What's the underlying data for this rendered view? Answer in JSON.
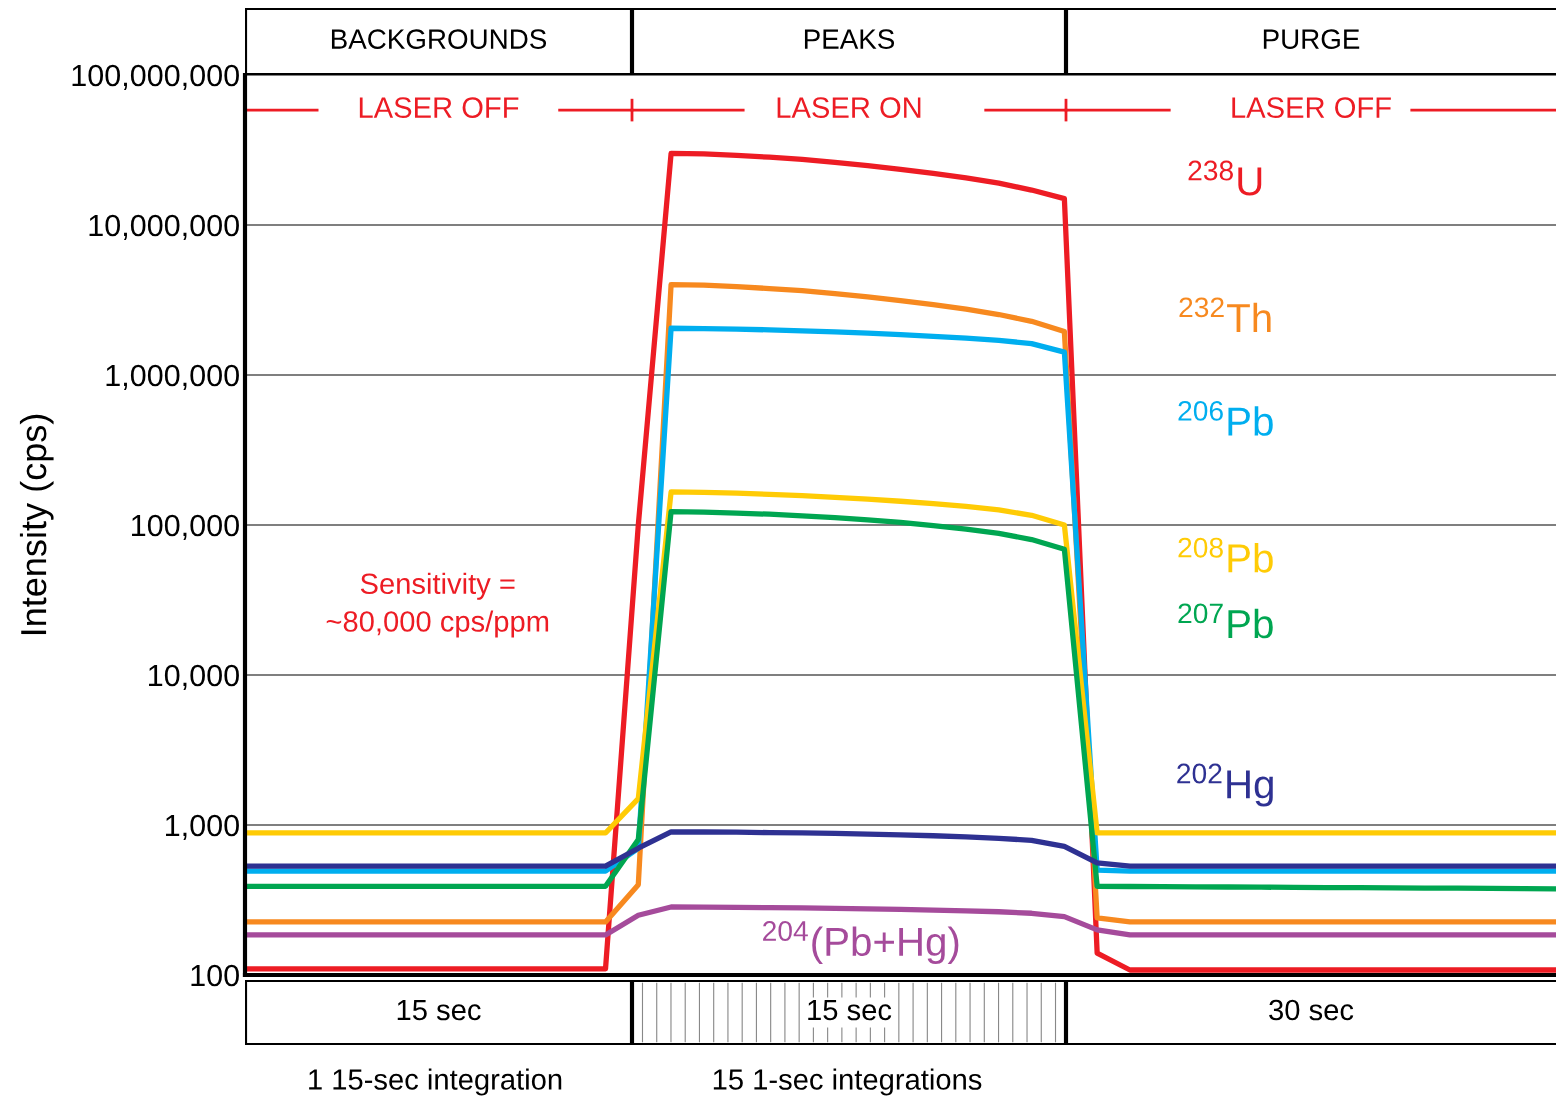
{
  "chart_data": {
    "type": "line",
    "ylabel": "Intensity (cps)",
    "log": "y",
    "grid": "y",
    "legend": false,
    "marker": "none",
    "line_style": "solid",
    "tick_labels": "y",
    "ylim": [
      100,
      100000000
    ],
    "yticks": [
      100,
      {
        "value": 1000,
        "label": "1,000"
      },
      {
        "value": 10000,
        "label": "10,000"
      },
      {
        "value": 100000,
        "label": "100,000"
      },
      {
        "value": 1000000,
        "label": "1,000,000"
      },
      {
        "value": 10000000,
        "label": "10,000,000"
      },
      {
        "value": 100000000,
        "label": "100,000,000"
      }
    ],
    "categories": [
      null,
      null,
      null,
      null,
      null,
      null,
      null,
      null,
      null,
      null,
      null,
      null,
      null,
      null,
      null,
      null,
      null,
      null,
      null,
      null,
      null,
      null,
      null,
      null,
      null,
      null,
      null,
      null,
      null,
      null,
      null,
      null,
      null,
      null,
      null,
      null,
      null,
      null,
      null,
      null,
      null
    ],
    "series": [
      {
        "name": "$^{238}$U",
        "color": "#ed1c24",
        "values": [
          110,
          110,
          110,
          110,
          110,
          110,
          110,
          110,
          110,
          110,
          110,
          110,
          100000,
          30000000,
          29800000,
          29100000,
          28300000,
          27400000,
          26200000,
          24900000,
          23500000,
          22100000,
          20600000,
          19000000,
          17100000,
          15000000,
          140,
          108,
          108,
          108,
          108,
          108,
          108,
          108,
          108,
          108,
          108,
          108,
          108,
          108,
          108
        ]
      },
      {
        "name": "$^{232}$Th",
        "color": "#f7891f",
        "values": [
          226,
          226,
          226,
          226,
          226,
          226,
          226,
          226,
          226,
          226,
          226,
          226,
          400,
          4000000,
          3970000,
          3880000,
          3770000,
          3650000,
          3490000,
          3320000,
          3130000,
          2950000,
          2750000,
          2530000,
          2280000,
          1950000,
          240,
          226,
          226,
          226,
          226,
          226,
          226,
          226,
          226,
          226,
          226,
          226,
          226,
          226,
          226
        ]
      },
      {
        "name": "$^{206}$Pb",
        "color": "#00aeef",
        "values": [
          493,
          493,
          493,
          493,
          493,
          493,
          493,
          493,
          493,
          493,
          493,
          493,
          700,
          2050000,
          2040000,
          2020000,
          2000000,
          1970000,
          1940000,
          1900000,
          1860000,
          1810000,
          1760000,
          1700000,
          1620000,
          1420000,
          500,
          493,
          493,
          493,
          493,
          493,
          493,
          493,
          493,
          493,
          493,
          493,
          493,
          493,
          493
        ]
      },
      {
        "name": "$^{208}$Pb",
        "color": "#ffcb05",
        "values": [
          885,
          885,
          885,
          885,
          885,
          885,
          885,
          885,
          885,
          885,
          885,
          885,
          1500,
          166000,
          165000,
          163000,
          160000,
          157000,
          153000,
          149000,
          144000,
          139000,
          133000,
          126000,
          116000,
          100000,
          885,
          885,
          885,
          885,
          885,
          885,
          885,
          885,
          885,
          885,
          885,
          885,
          885,
          885,
          885
        ]
      },
      {
        "name": "$^{207}$Pb",
        "color": "#00a651",
        "values": [
          390,
          390,
          390,
          390,
          390,
          390,
          390,
          390,
          390,
          390,
          390,
          390,
          800,
          123000,
          122000,
          120000,
          118000,
          115000,
          112000,
          108000,
          104000,
          99000,
          94000,
          88000,
          80000,
          69000,
          390,
          389,
          388,
          387,
          386,
          385,
          384,
          383,
          382,
          381,
          380,
          379,
          378,
          377,
          375
        ]
      },
      {
        "name": "$^{202}$Hg",
        "color": "#2e3192",
        "values": [
          532,
          532,
          532,
          532,
          532,
          532,
          532,
          532,
          532,
          532,
          532,
          532,
          700,
          900,
          898,
          895,
          890,
          885,
          878,
          870,
          860,
          848,
          833,
          815,
          790,
          720,
          560,
          532,
          532,
          532,
          532,
          532,
          532,
          532,
          532,
          532,
          532,
          532,
          532,
          532,
          532
        ]
      },
      {
        "name": "$^{204}$(Pb+Hg)",
        "color": "#a54b9b",
        "values": [
          185,
          185,
          185,
          185,
          185,
          185,
          185,
          185,
          185,
          185,
          185,
          185,
          250,
          284,
          283,
          282,
          281,
          280,
          278,
          276,
          274,
          271,
          268,
          264,
          258,
          245,
          200,
          185,
          185,
          185,
          185,
          185,
          185,
          185,
          185,
          185,
          185,
          185,
          185,
          185,
          185
        ]
      }
    ],
    "annotations": [
      "BACKGROUNDS",
      "PEAKS",
      "PURGE",
      "LASER OFF",
      "LASER ON",
      "LASER OFF",
      "Sensitivity =\n~80,000 cps/ppm",
      "15 sec",
      "15 sec",
      "30 sec",
      "1 15-sec integration",
      "15 1-sec integrations"
    ]
  }
}
